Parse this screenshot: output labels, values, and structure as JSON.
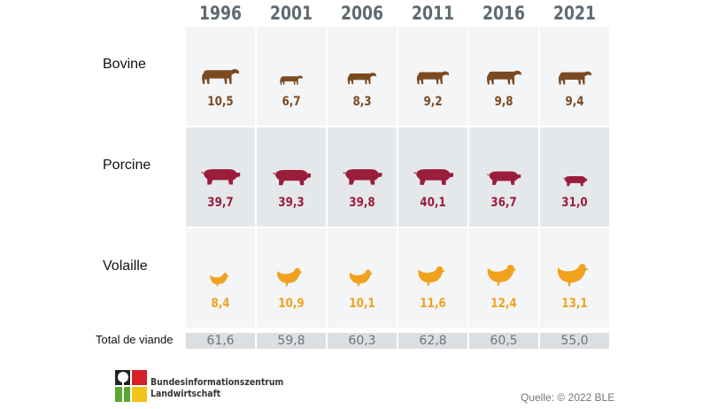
{
  "chart_data": {
    "type": "table",
    "categories": [
      "1996",
      "2001",
      "2006",
      "2011",
      "2016",
      "2021"
    ],
    "series": [
      {
        "name": "Bovine",
        "icon": "cow-icon",
        "color": "#7b4a20",
        "values": [
          "10,5",
          "6,7",
          "8,3",
          "9,2",
          "9,8",
          "9,4"
        ]
      },
      {
        "name": "Porcine",
        "icon": "pig-icon",
        "color": "#9a1d3c",
        "values": [
          "39,7",
          "39,3",
          "39,8",
          "40,1",
          "36,7",
          "31,0"
        ]
      },
      {
        "name": "Volaille",
        "icon": "chicken-icon",
        "color": "#f0a21e",
        "values": [
          "8,4",
          "10,9",
          "10,1",
          "11,6",
          "12,4",
          "13,1"
        ]
      }
    ],
    "total": {
      "label": "Total de viande",
      "values": [
        "61,6",
        "59,8",
        "60,3",
        "62,8",
        "60,5",
        "55,0"
      ]
    }
  },
  "footer": {
    "logo_line1": "Bundesinformationszentrum",
    "logo_line2": "Landwirtschaft",
    "source": "Quelle: © 2022 BLE"
  }
}
